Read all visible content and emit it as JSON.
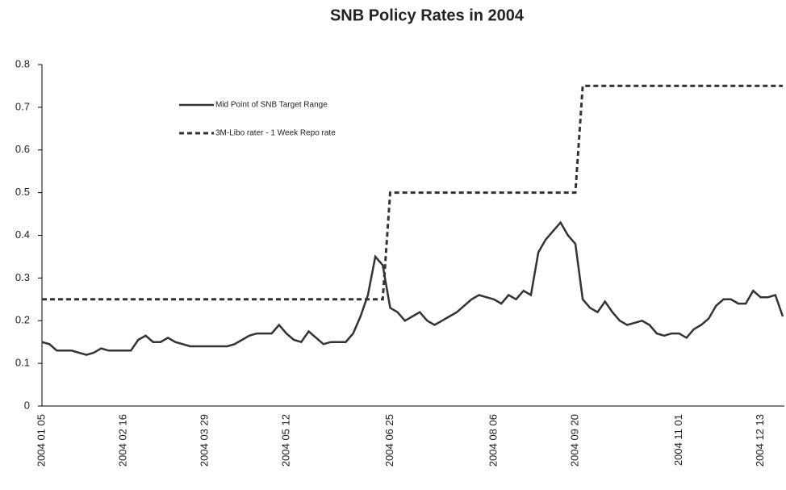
{
  "chart_data": {
    "type": "line",
    "title": "SNB Policy Rates in 2004",
    "categories": [
      "2004 01 05",
      null,
      null,
      null,
      null,
      null,
      null,
      null,
      null,
      null,
      null,
      "2004 02 16",
      null,
      null,
      null,
      null,
      null,
      null,
      null,
      null,
      null,
      null,
      "2004 03 29",
      null,
      null,
      null,
      null,
      null,
      null,
      null,
      null,
      null,
      null,
      "2004 05 12",
      null,
      null,
      null,
      null,
      null,
      null,
      null,
      null,
      null,
      null,
      null,
      null,
      null,
      "2004 06 25",
      null,
      null,
      null,
      null,
      null,
      null,
      null,
      null,
      null,
      null,
      null,
      null,
      null,
      "2004 08 06",
      null,
      null,
      null,
      null,
      null,
      null,
      null,
      null,
      null,
      null,
      "2004 09 20",
      null,
      null,
      null,
      null,
      null,
      null,
      null,
      null,
      null,
      null,
      null,
      null,
      null,
      "2004 11 01",
      null,
      null,
      null,
      null,
      null,
      null,
      null,
      null,
      null,
      null,
      "2004 12 13",
      null,
      null,
      null
    ],
    "series": [
      {
        "name": "Mid Point of SNB Target Range",
        "color": "#333333",
        "style": "solid",
        "values": [
          0.15,
          0.145,
          0.13,
          0.13,
          0.13,
          0.125,
          0.12,
          0.125,
          0.135,
          0.13,
          0.13,
          0.13,
          0.13,
          0.155,
          0.165,
          0.15,
          0.15,
          0.16,
          0.15,
          0.145,
          0.14,
          0.14,
          0.14,
          0.14,
          0.14,
          0.14,
          0.145,
          0.155,
          0.165,
          0.17,
          0.17,
          0.17,
          0.19,
          0.17,
          0.155,
          0.15,
          0.175,
          0.16,
          0.145,
          0.15,
          0.15,
          0.15,
          0.17,
          0.21,
          0.26,
          0.35,
          0.33,
          0.23,
          0.22,
          0.2,
          0.21,
          0.22,
          0.2,
          0.19,
          0.2,
          0.21,
          0.22,
          0.235,
          0.25,
          0.26,
          0.255,
          0.25,
          0.24,
          0.26,
          0.25,
          0.27,
          0.26,
          0.36,
          0.39,
          0.41,
          0.43,
          0.4,
          0.38,
          0.25,
          0.23,
          0.22,
          0.245,
          0.22,
          0.2,
          0.19,
          0.195,
          0.2,
          0.19,
          0.17,
          0.165,
          0.17,
          0.17,
          0.16,
          0.18,
          0.19,
          0.205,
          0.235,
          0.25,
          0.25,
          0.24,
          0.24,
          0.27,
          0.255,
          0.255,
          0.26,
          0.21
        ]
      },
      {
        "name": "3M-Libo rater - 1 Week Repo rate",
        "color": "#333333",
        "style": "dashed",
        "values": [
          0.25,
          0.25,
          0.25,
          0.25,
          0.25,
          0.25,
          0.25,
          0.25,
          0.25,
          0.25,
          0.25,
          0.25,
          0.25,
          0.25,
          0.25,
          0.25,
          0.25,
          0.25,
          0.25,
          0.25,
          0.25,
          0.25,
          0.25,
          0.25,
          0.25,
          0.25,
          0.25,
          0.25,
          0.25,
          0.25,
          0.25,
          0.25,
          0.25,
          0.25,
          0.25,
          0.25,
          0.25,
          0.25,
          0.25,
          0.25,
          0.25,
          0.25,
          0.25,
          0.25,
          0.25,
          0.25,
          0.25,
          0.5,
          0.5,
          0.5,
          0.5,
          0.5,
          0.5,
          0.5,
          0.5,
          0.5,
          0.5,
          0.5,
          0.5,
          0.5,
          0.5,
          0.5,
          0.5,
          0.5,
          0.5,
          0.5,
          0.5,
          0.5,
          0.5,
          0.5,
          0.5,
          0.5,
          0.5,
          0.75,
          0.75,
          0.75,
          0.75,
          0.75,
          0.75,
          0.75,
          0.75,
          0.75,
          0.75,
          0.75,
          0.75,
          0.75,
          0.75,
          0.75,
          0.75,
          0.75,
          0.75,
          0.75,
          0.75,
          0.75,
          0.75,
          0.75,
          0.75,
          0.75,
          0.75,
          0.75,
          0.75
        ]
      }
    ],
    "ylim": [
      0,
      0.8
    ],
    "yticks": [
      0,
      0.1,
      0.2,
      0.3,
      0.4,
      0.5,
      0.6,
      0.7,
      0.8
    ],
    "grid": false
  }
}
